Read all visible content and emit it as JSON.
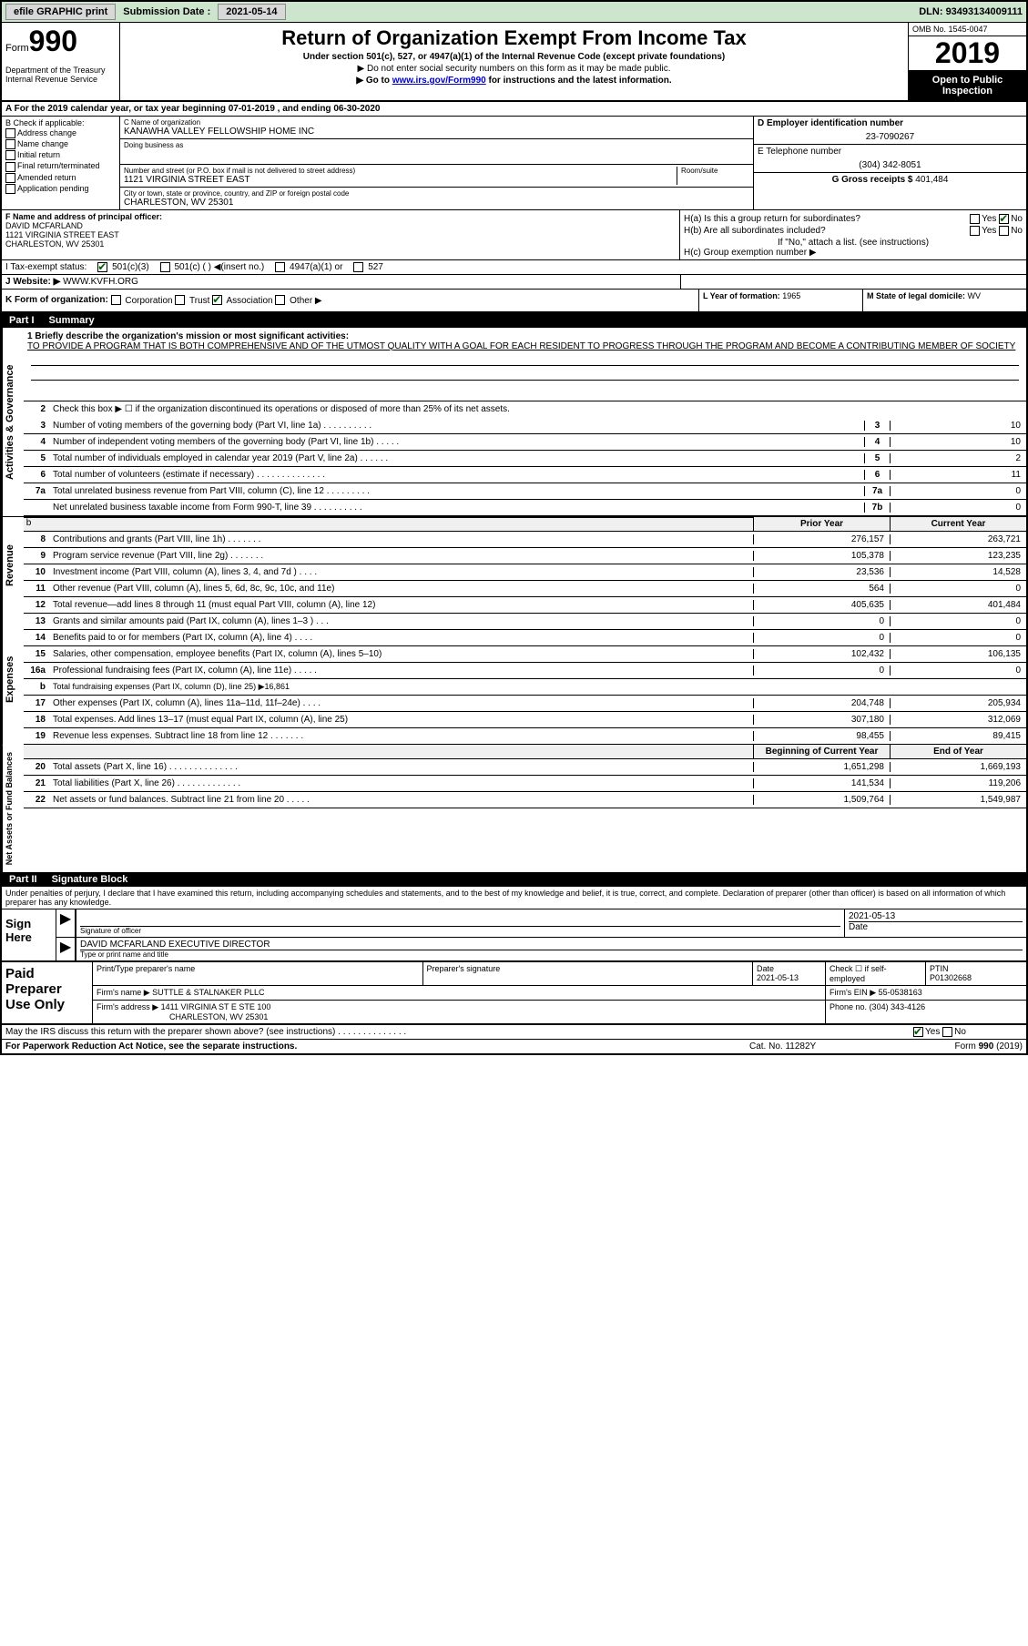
{
  "topbar": {
    "efile": "efile GRAPHIC print",
    "submission_label": "Submission Date :",
    "submission_date": "2021-05-14",
    "dln_label": "DLN:",
    "dln": "93493134009111"
  },
  "header": {
    "form_label": "Form",
    "form_num": "990",
    "dept": "Department of the Treasury Internal Revenue Service",
    "title": "Return of Organization Exempt From Income Tax",
    "subtitle": "Under section 501(c), 527, or 4947(a)(1) of the Internal Revenue Code (except private foundations)",
    "note1": "▶ Do not enter social security numbers on this form as it may be made public.",
    "note2_pre": "▶ Go to ",
    "note2_link": "www.irs.gov/Form990",
    "note2_post": " for instructions and the latest information.",
    "omb": "OMB No. 1545-0047",
    "year": "2019",
    "inspect": "Open to Public Inspection"
  },
  "row_a": "A For the 2019 calendar year, or tax year beginning 07-01-2019    , and ending 06-30-2020",
  "col_b": {
    "title": "B Check if applicable:",
    "items": [
      "Address change",
      "Name change",
      "Initial return",
      "Final return/terminated",
      "Amended return",
      "Application pending"
    ]
  },
  "col_c": {
    "name_label": "C Name of organization",
    "name": "KANAWHA VALLEY FELLOWSHIP HOME INC",
    "dba_label": "Doing business as",
    "dba": "",
    "addr_label": "Number and street (or P.O. box if mail is not delivered to street address)",
    "room_label": "Room/suite",
    "addr": "1121 VIRGINIA STREET EAST",
    "city_label": "City or town, state or province, country, and ZIP or foreign postal code",
    "city": "CHARLESTON, WV  25301"
  },
  "col_de": {
    "d_label": "D Employer identification number",
    "d_val": "23-7090267",
    "e_label": "E Telephone number",
    "e_val": "(304) 342-8051",
    "g_label": "G Gross receipts $",
    "g_val": "401,484"
  },
  "col_f": {
    "label": "F  Name and address of principal officer:",
    "name": "DAVID MCFARLAND",
    "addr1": "1121 VIRGINIA STREET EAST",
    "addr2": "CHARLESTON, WV  25301"
  },
  "col_h": {
    "ha": "H(a)  Is this a group return for subordinates?",
    "ha_yes": "Yes",
    "ha_no": "No",
    "hb": "H(b)  Are all subordinates included?",
    "hb_yes": "Yes",
    "hb_no": "No",
    "hb_note": "If \"No,\" attach a list. (see instructions)",
    "hc": "H(c)  Group exemption number ▶"
  },
  "tax_status": {
    "label": "I  Tax-exempt status:",
    "opt1": "501(c)(3)",
    "opt2": "501(c) (  ) ◀(insert no.)",
    "opt3": "4947(a)(1) or",
    "opt4": "527"
  },
  "website": {
    "label": "J  Website: ▶",
    "val": "WWW.KVFH.ORG"
  },
  "form_org": {
    "k_label": "K Form of organization:",
    "k_opts": [
      "Corporation",
      "Trust",
      "Association",
      "Other ▶"
    ],
    "l_label": "L Year of formation:",
    "l_val": "1965",
    "m_label": "M State of legal domicile:",
    "m_val": "WV"
  },
  "part1": {
    "part_label": "Part I",
    "title": "Summary",
    "mission_label": "1  Briefly describe the organization's mission or most significant activities:",
    "mission": "TO PROVIDE A PROGRAM THAT IS BOTH COMPREHENSIVE AND OF THE UTMOST QUALITY WITH A GOAL FOR EACH RESIDENT TO PROGRESS THROUGH THE PROGRAM AND BECOME A CONTRIBUTING MEMBER OF SOCIETY",
    "line2": "Check this box ▶ ☐  if the organization discontinued its operations or disposed of more than 25% of its net assets.",
    "sections": {
      "activities": {
        "label": "Activities & Governance",
        "lines": [
          {
            "n": "3",
            "d": "Number of voting members of the governing body (Part VI, line 1a)  .  .  .  .  .  .  .  .  .  .",
            "bn": "3",
            "v": "10"
          },
          {
            "n": "4",
            "d": "Number of independent voting members of the governing body (Part VI, line 1b)  .  .  .  .  .",
            "bn": "4",
            "v": "10"
          },
          {
            "n": "5",
            "d": "Total number of individuals employed in calendar year 2019 (Part V, line 2a)  .  .  .  .  .  .",
            "bn": "5",
            "v": "2"
          },
          {
            "n": "6",
            "d": "Total number of volunteers (estimate if necessary)    .  .  .  .  .  .  .  .  .  .  .  .  .  .",
            "bn": "6",
            "v": "11"
          },
          {
            "n": "7a",
            "d": "Total unrelated business revenue from Part VIII, column (C), line 12  .  .  .  .  .  .  .  .  .",
            "bn": "7a",
            "v": "0"
          },
          {
            "n": "",
            "d": "Net unrelated business taxable income from Form 990-T, line 39   .  .  .  .  .  .  .  .  .  .",
            "bn": "7b",
            "v": "0"
          }
        ]
      },
      "revenue": {
        "label": "Revenue",
        "col1": "Prior Year",
        "col2": "Current Year",
        "lines": [
          {
            "n": "8",
            "d": "Contributions and grants (Part VIII, line 1h)  .  .  .  .  .  .  .",
            "v1": "276,157",
            "v2": "263,721"
          },
          {
            "n": "9",
            "d": "Program service revenue (Part VIII, line 2g)  .  .  .  .  .  .  .",
            "v1": "105,378",
            "v2": "123,235"
          },
          {
            "n": "10",
            "d": "Investment income (Part VIII, column (A), lines 3, 4, and 7d )  .  .  .  .",
            "v1": "23,536",
            "v2": "14,528"
          },
          {
            "n": "11",
            "d": "Other revenue (Part VIII, column (A), lines 5, 6d, 8c, 9c, 10c, and 11e)",
            "v1": "564",
            "v2": "0"
          },
          {
            "n": "12",
            "d": "Total revenue—add lines 8 through 11 (must equal Part VIII, column (A), line 12)",
            "v1": "405,635",
            "v2": "401,484"
          }
        ]
      },
      "expenses": {
        "label": "Expenses",
        "lines": [
          {
            "n": "13",
            "d": "Grants and similar amounts paid (Part IX, column (A), lines 1–3 )  .  .  .",
            "v1": "0",
            "v2": "0"
          },
          {
            "n": "14",
            "d": "Benefits paid to or for members (Part IX, column (A), line 4)  .  .  .  .",
            "v1": "0",
            "v2": "0"
          },
          {
            "n": "15",
            "d": "Salaries, other compensation, employee benefits (Part IX, column (A), lines 5–10)",
            "v1": "102,432",
            "v2": "106,135"
          },
          {
            "n": "16a",
            "d": "Professional fundraising fees (Part IX, column (A), line 11e)  .  .  .  .  .",
            "v1": "0",
            "v2": "0"
          },
          {
            "n": "b",
            "d": "Total fundraising expenses (Part IX, column (D), line 25) ▶16,861",
            "gray": true
          },
          {
            "n": "17",
            "d": "Other expenses (Part IX, column (A), lines 11a–11d, 11f–24e)  .  .  .  .",
            "v1": "204,748",
            "v2": "205,934"
          },
          {
            "n": "18",
            "d": "Total expenses. Add lines 13–17 (must equal Part IX, column (A), line 25)",
            "v1": "307,180",
            "v2": "312,069"
          },
          {
            "n": "19",
            "d": "Revenue less expenses. Subtract line 18 from line 12  .  .  .  .  .  .  .",
            "v1": "98,455",
            "v2": "89,415"
          }
        ]
      },
      "netassets": {
        "label": "Net Assets or Fund Balances",
        "col1": "Beginning of Current Year",
        "col2": "End of Year",
        "lines": [
          {
            "n": "20",
            "d": "Total assets (Part X, line 16)  .  .  .  .  .  .  .  .  .  .  .  .  .  .",
            "v1": "1,651,298",
            "v2": "1,669,193"
          },
          {
            "n": "21",
            "d": "Total liabilities (Part X, line 26)  .  .  .  .  .  .  .  .  .  .  .  .  .",
            "v1": "141,534",
            "v2": "119,206"
          },
          {
            "n": "22",
            "d": "Net assets or fund balances. Subtract line 21 from line 20  .  .  .  .  .",
            "v1": "1,509,764",
            "v2": "1,549,987"
          }
        ]
      }
    }
  },
  "part2": {
    "part_label": "Part II",
    "title": "Signature Block",
    "declare": "Under penalties of perjury, I declare that I have examined this return, including accompanying schedules and statements, and to the best of my knowledge and belief, it is true, correct, and complete. Declaration of preparer (other than officer) is based on all information of which preparer has any knowledge.",
    "sign_here": "Sign Here",
    "sig_officer_label": "Signature of officer",
    "date_label": "Date",
    "date_val": "2021-05-13",
    "name_title": "DAVID MCFARLAND  EXECUTIVE DIRECTOR",
    "name_title_label": "Type or print name and title",
    "paid_label": "Paid Preparer Use Only",
    "prep_name_label": "Print/Type preparer's name",
    "prep_sig_label": "Preparer's signature",
    "prep_date_label": "Date",
    "prep_date": "2021-05-13",
    "check_self": "Check ☐ if self-employed",
    "ptin_label": "PTIN",
    "ptin": "P01302668",
    "firm_name_label": "Firm's name    ▶",
    "firm_name": "SUTTLE & STALNAKER PLLC",
    "firm_ein_label": "Firm's EIN ▶",
    "firm_ein": "55-0538163",
    "firm_addr_label": "Firm's address ▶",
    "firm_addr1": "1411 VIRGINIA ST E STE 100",
    "firm_addr2": "CHARLESTON, WV  25301",
    "phone_label": "Phone no.",
    "phone": "(304) 343-4126",
    "discuss": "May the IRS discuss this return with the preparer shown above? (see instructions)  .  .  .  .  .  .  .  .  .  .  .  .  .  .",
    "discuss_yes": "Yes",
    "discuss_no": "No"
  },
  "footer": {
    "paperwork": "For Paperwork Reduction Act Notice, see the separate instructions.",
    "cat": "Cat. No. 11282Y",
    "form": "Form 990 (2019)"
  }
}
